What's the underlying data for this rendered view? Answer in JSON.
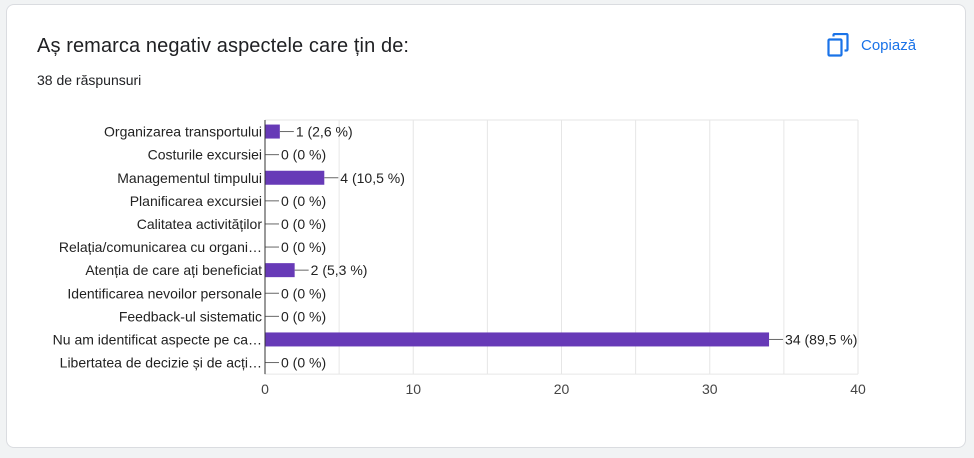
{
  "card": {
    "title": "Aș remarca negativ aspectele care țin de:",
    "subtitle": "38 de răspunsuri",
    "copy_label": "Copiază",
    "copy_icon": "copy-icon"
  },
  "colors": {
    "bar": "#673ab7",
    "accent": "#1a73e8",
    "grid": "#e6e6e6",
    "axis": "#333333",
    "text": "#222222"
  },
  "chart_data": {
    "type": "bar",
    "orientation": "horizontal",
    "categories": [
      "Organizarea transportului",
      "Costurile excursiei",
      "Managementul timpului",
      "Planificarea excursiei",
      "Calitatea activităților",
      "Relația/comunicarea cu organi…",
      "Atenția de care ați beneficiat",
      "Identificarea nevoilor personale",
      "Feedback-ul sistematic",
      "Nu am identificat aspecte pe ca…",
      "Libertatea de decizie și de acți…"
    ],
    "values": [
      1,
      0,
      4,
      0,
      0,
      0,
      2,
      0,
      0,
      34,
      0
    ],
    "data_labels": [
      "1 (2,6 %)",
      "0 (0 %)",
      "4 (10,5 %)",
      "0 (0 %)",
      "0 (0 %)",
      "0 (0 %)",
      "2 (5,3 %)",
      "0 (0 %)",
      "0 (0 %)",
      "34 (89,5 %)",
      "0 (0 %)"
    ],
    "xlim": [
      0,
      40
    ],
    "xticks": [
      0,
      10,
      20,
      30,
      40
    ],
    "minor_grid_step": 5,
    "grid": true
  }
}
